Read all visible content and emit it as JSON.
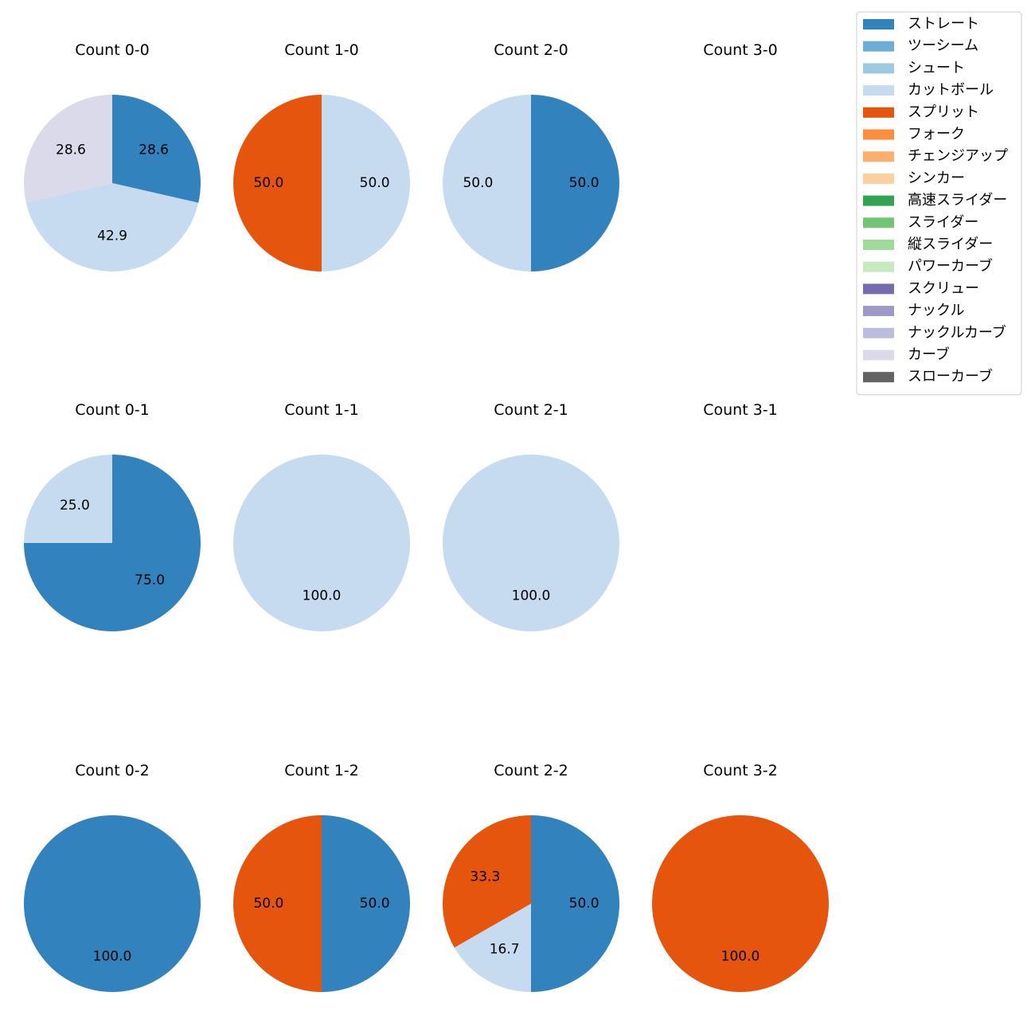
{
  "chart_data": {
    "type": "pie",
    "legend": {
      "placement": "top-right",
      "entries": [
        {
          "name": "ストレート",
          "color": "#3182bd"
        },
        {
          "name": "ツーシーム",
          "color": "#6baed6"
        },
        {
          "name": "シュート",
          "color": "#9ecae1"
        },
        {
          "name": "カットボール",
          "color": "#c6dbef"
        },
        {
          "name": "スプリット",
          "color": "#e6550d"
        },
        {
          "name": "フォーク",
          "color": "#fd8d3c"
        },
        {
          "name": "チェンジアップ",
          "color": "#fdae6b"
        },
        {
          "name": "シンカー",
          "color": "#fdd0a2"
        },
        {
          "name": "高速スライダー",
          "color": "#31a354"
        },
        {
          "name": "スライダー",
          "color": "#74c476"
        },
        {
          "name": "縦スライダー",
          "color": "#a1d99b"
        },
        {
          "name": "パワーカーブ",
          "color": "#c7e9c0"
        },
        {
          "name": "スクリュー",
          "color": "#756bb1"
        },
        {
          "name": "ナックル",
          "color": "#9e9ac8"
        },
        {
          "name": "ナックルカーブ",
          "color": "#bcbddc"
        },
        {
          "name": "カーブ",
          "color": "#dadaeb"
        },
        {
          "name": "スローカーブ",
          "color": "#636363"
        }
      ]
    },
    "charts": [
      {
        "title": "Count 0-0",
        "slices": [
          {
            "pitch": "ストレート",
            "value": 28.6,
            "label": "28.6"
          },
          {
            "pitch": "カットボール",
            "value": 42.9,
            "label": "42.9"
          },
          {
            "pitch": "カーブ",
            "value": 28.6,
            "label": "28.6"
          }
        ]
      },
      {
        "title": "Count 1-0",
        "slices": [
          {
            "pitch": "カットボール",
            "value": 50.0,
            "label": "50.0"
          },
          {
            "pitch": "スプリット",
            "value": 50.0,
            "label": "50.0"
          }
        ]
      },
      {
        "title": "Count 2-0",
        "slices": [
          {
            "pitch": "ストレート",
            "value": 50.0,
            "label": "50.0"
          },
          {
            "pitch": "カットボール",
            "value": 50.0,
            "label": "50.0"
          }
        ]
      },
      {
        "title": "Count 3-0",
        "slices": []
      },
      {
        "title": "Count 0-1",
        "slices": [
          {
            "pitch": "ストレート",
            "value": 75.0,
            "label": "75.0"
          },
          {
            "pitch": "カットボール",
            "value": 25.0,
            "label": "25.0"
          }
        ]
      },
      {
        "title": "Count 1-1",
        "slices": [
          {
            "pitch": "カットボール",
            "value": 100.0,
            "label": "100.0"
          }
        ]
      },
      {
        "title": "Count 2-1",
        "slices": [
          {
            "pitch": "カットボール",
            "value": 100.0,
            "label": "100.0"
          }
        ]
      },
      {
        "title": "Count 3-1",
        "slices": []
      },
      {
        "title": "Count 0-2",
        "slices": [
          {
            "pitch": "ストレート",
            "value": 100.0,
            "label": "100.0"
          }
        ]
      },
      {
        "title": "Count 1-2",
        "slices": [
          {
            "pitch": "ストレート",
            "value": 50.0,
            "label": "50.0"
          },
          {
            "pitch": "スプリット",
            "value": 50.0,
            "label": "50.0"
          }
        ]
      },
      {
        "title": "Count 2-2",
        "slices": [
          {
            "pitch": "ストレート",
            "value": 50.0,
            "label": "50.0"
          },
          {
            "pitch": "カットボール",
            "value": 16.7,
            "label": "16.7"
          },
          {
            "pitch": "スプリット",
            "value": 33.3,
            "label": "33.3"
          }
        ]
      },
      {
        "title": "Count 3-2",
        "slices": [
          {
            "pitch": "スプリット",
            "value": 100.0,
            "label": "100.0"
          }
        ]
      }
    ]
  }
}
